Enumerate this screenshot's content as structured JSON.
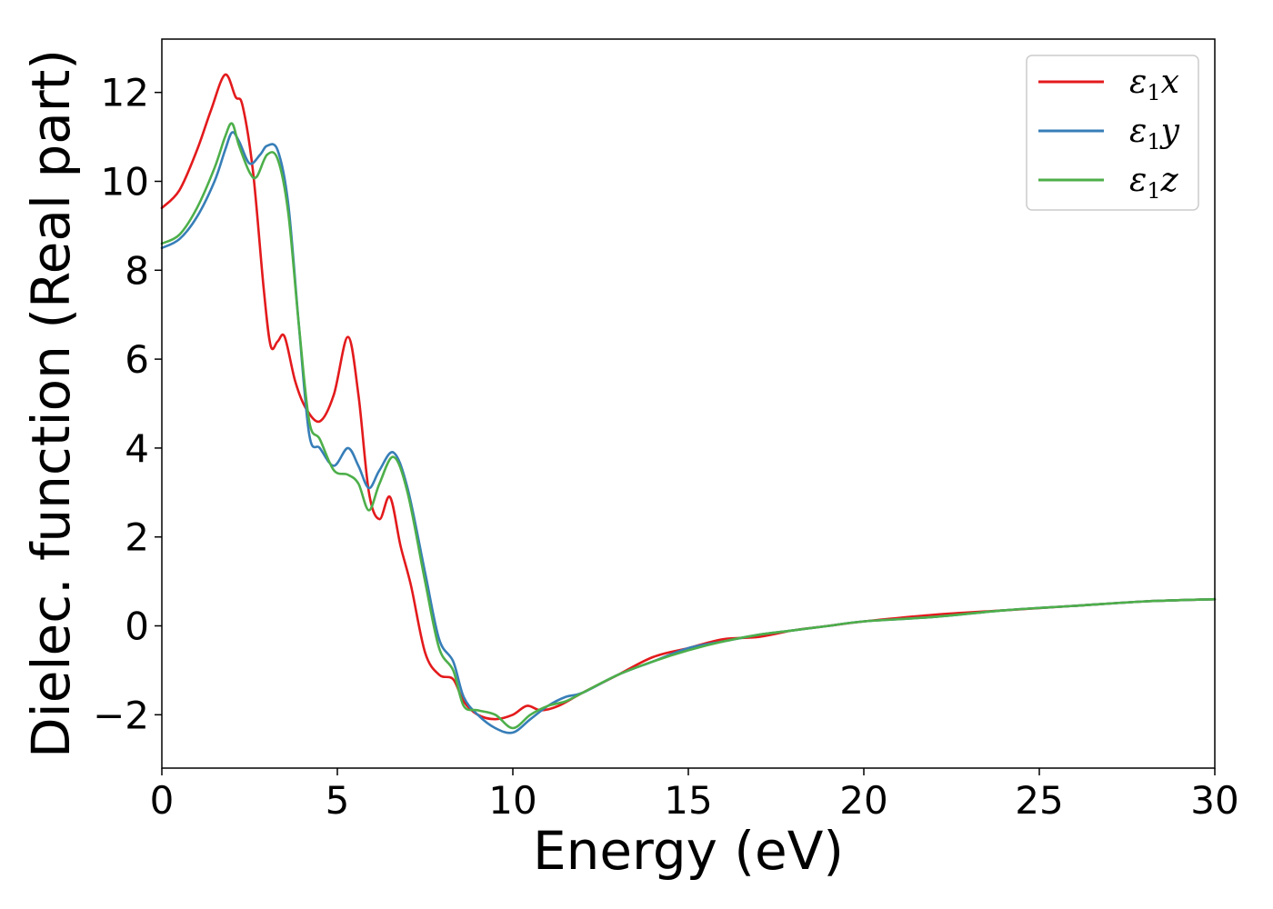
{
  "chart_data": {
    "type": "line",
    "title": "",
    "xlabel": "Energy (eV)",
    "ylabel": "Dielec. function (Real part)",
    "xlim": [
      0,
      30
    ],
    "ylim": [
      -3.2,
      13.2
    ],
    "xticks": [
      0,
      5,
      10,
      15,
      20,
      25,
      30
    ],
    "yticks": [
      -2,
      0,
      2,
      4,
      6,
      8,
      10,
      12
    ],
    "xtick_labels": [
      "0",
      "5",
      "10",
      "15",
      "20",
      "25",
      "30"
    ],
    "ytick_labels": [
      "−2",
      "0",
      "2",
      "4",
      "6",
      "8",
      "10",
      "12"
    ],
    "grid": false,
    "legend_placement": "top-right",
    "series": [
      {
        "name": "ε1x",
        "name_base": "ε",
        "name_sub": "1",
        "name_tail": "x",
        "color": "#e31a1c",
        "x": [
          0,
          0.5,
          1.0,
          1.4,
          1.8,
          2.1,
          2.3,
          2.6,
          2.9,
          3.1,
          3.3,
          3.5,
          3.8,
          4.1,
          4.5,
          4.9,
          5.3,
          5.6,
          5.9,
          6.2,
          6.5,
          6.8,
          7.1,
          7.5,
          7.9,
          8.3,
          8.6,
          9.0,
          9.5,
          10.0,
          10.4,
          10.8,
          11.3,
          12.0,
          13.0,
          14.0,
          15.0,
          16.0,
          17.0,
          18.0,
          19.0,
          20.0,
          22.0,
          24.0,
          26.0,
          28.0,
          30.0
        ],
        "y": [
          9.4,
          9.8,
          10.7,
          11.6,
          12.4,
          11.9,
          11.7,
          10.2,
          7.6,
          6.3,
          6.4,
          6.5,
          5.5,
          4.9,
          4.6,
          5.2,
          6.5,
          5.2,
          3.0,
          2.4,
          2.9,
          1.8,
          0.9,
          -0.6,
          -1.1,
          -1.2,
          -1.7,
          -2.0,
          -2.1,
          -2.0,
          -1.8,
          -1.9,
          -1.8,
          -1.5,
          -1.1,
          -0.7,
          -0.5,
          -0.3,
          -0.25,
          -0.1,
          0.0,
          0.1,
          0.25,
          0.35,
          0.45,
          0.55,
          0.6
        ]
      },
      {
        "name": "ε1y",
        "name_base": "ε",
        "name_sub": "1",
        "name_tail": "y",
        "color": "#377eb8",
        "x": [
          0,
          0.5,
          1.0,
          1.5,
          1.8,
          2.0,
          2.2,
          2.5,
          2.8,
          3.0,
          3.3,
          3.6,
          3.9,
          4.2,
          4.5,
          4.9,
          5.3,
          5.6,
          5.9,
          6.2,
          6.6,
          7.0,
          7.5,
          7.9,
          8.3,
          8.6,
          9.0,
          9.5,
          10.0,
          10.5,
          11.0,
          11.5,
          12.0,
          13.0,
          14.0,
          15.0,
          16.0,
          17.0,
          18.0,
          19.0,
          20.0,
          22.0,
          24.0,
          26.0,
          28.0,
          30.0
        ],
        "y": [
          8.5,
          8.7,
          9.2,
          10.0,
          10.7,
          11.1,
          10.9,
          10.4,
          10.6,
          10.8,
          10.7,
          9.5,
          6.8,
          4.3,
          4.0,
          3.6,
          4.0,
          3.6,
          3.1,
          3.5,
          3.9,
          3.1,
          1.2,
          -0.3,
          -0.8,
          -1.6,
          -2.0,
          -2.3,
          -2.4,
          -2.1,
          -1.8,
          -1.6,
          -1.5,
          -1.1,
          -0.8,
          -0.5,
          -0.35,
          -0.2,
          -0.1,
          0.0,
          0.1,
          0.2,
          0.35,
          0.45,
          0.55,
          0.6
        ]
      },
      {
        "name": "ε1z",
        "name_base": "ε",
        "name_sub": "1",
        "name_tail": "z",
        "color": "#4daf4a",
        "x": [
          0,
          0.5,
          1.0,
          1.5,
          1.8,
          2.0,
          2.2,
          2.5,
          2.7,
          3.0,
          3.3,
          3.6,
          3.9,
          4.2,
          4.5,
          4.9,
          5.3,
          5.6,
          5.9,
          6.2,
          6.6,
          7.0,
          7.5,
          7.9,
          8.3,
          8.6,
          9.0,
          9.5,
          10.0,
          10.5,
          11.0,
          11.5,
          12.0,
          13.0,
          14.0,
          15.0,
          16.0,
          17.0,
          18.0,
          19.0,
          20.0,
          22.0,
          24.0,
          26.0,
          28.0,
          30.0
        ],
        "y": [
          8.6,
          8.8,
          9.4,
          10.3,
          11.0,
          11.3,
          10.8,
          10.2,
          10.1,
          10.6,
          10.5,
          9.3,
          6.8,
          4.6,
          4.2,
          3.5,
          3.4,
          3.2,
          2.6,
          3.2,
          3.8,
          3.0,
          1.0,
          -0.5,
          -1.0,
          -1.8,
          -1.9,
          -2.0,
          -2.3,
          -2.0,
          -1.8,
          -1.7,
          -1.5,
          -1.1,
          -0.8,
          -0.55,
          -0.35,
          -0.2,
          -0.1,
          0.0,
          0.1,
          0.2,
          0.35,
          0.45,
          0.55,
          0.6
        ]
      }
    ]
  }
}
